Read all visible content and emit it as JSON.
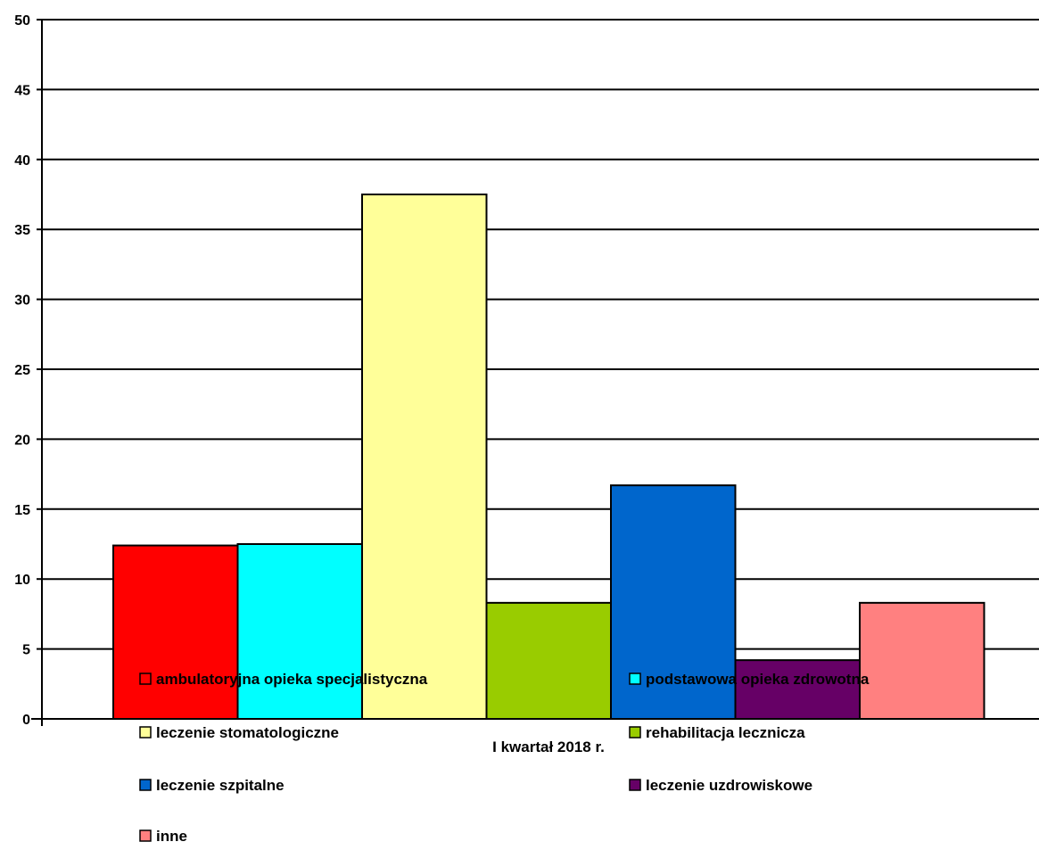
{
  "chart_data": {
    "type": "bar",
    "categories": [
      "I kwartał 2018 r."
    ],
    "series": [
      {
        "name": "ambulatoryjna opieka specjalistyczna",
        "values": [
          12.4
        ],
        "color": "#ff0000"
      },
      {
        "name": "podstawowa opieka zdrowotna",
        "values": [
          12.5
        ],
        "color": "#00ffff"
      },
      {
        "name": "leczenie stomatologiczne",
        "values": [
          37.5
        ],
        "color": "#ffff99"
      },
      {
        "name": "rehabilitacja lecznicza",
        "values": [
          8.3
        ],
        "color": "#99cc00"
      },
      {
        "name": "leczenie szpitalne",
        "values": [
          16.7
        ],
        "color": "#0066cc"
      },
      {
        "name": "leczenie uzdrowiskowe",
        "values": [
          4.2
        ],
        "color": "#660066"
      },
      {
        "name": "inne",
        "values": [
          8.3
        ],
        "color": "#ff8080"
      }
    ],
    "ylim": [
      0,
      50
    ],
    "yticks": [
      "0",
      "5",
      "10",
      "15",
      "20",
      "25",
      "30",
      "35",
      "40",
      "45",
      "50"
    ],
    "grid": true,
    "legend": "bottom"
  }
}
